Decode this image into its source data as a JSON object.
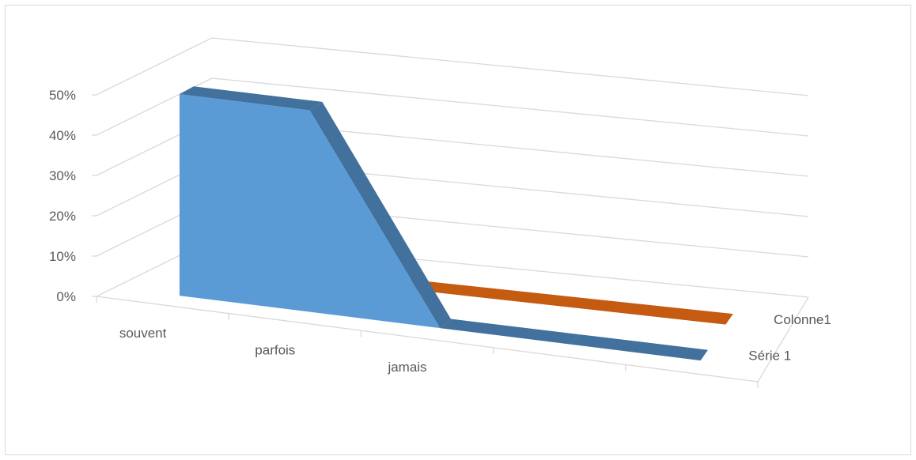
{
  "chart_data": {
    "type": "area",
    "title": "",
    "xlabel": "",
    "ylabel": "",
    "categories": [
      "souvent",
      "parfois",
      "jamais",
      "",
      ""
    ],
    "y_tick_labels": [
      "0%",
      "10%",
      "20%",
      "30%",
      "40%",
      "50%"
    ],
    "ylim": [
      0,
      0.5
    ],
    "grid": true,
    "three_d": true,
    "series": [
      {
        "name": "Série 1",
        "values": [
          0.5,
          0.5,
          0.0,
          0.0,
          0.0
        ],
        "color": "#5B9BD5",
        "dark_color": "#41719C"
      },
      {
        "name": "Colonne1",
        "values": [
          0.0,
          0.0,
          0.0,
          0.0,
          0.0
        ],
        "color": "#C55A11",
        "dark_color": "#C55A11"
      }
    ]
  }
}
